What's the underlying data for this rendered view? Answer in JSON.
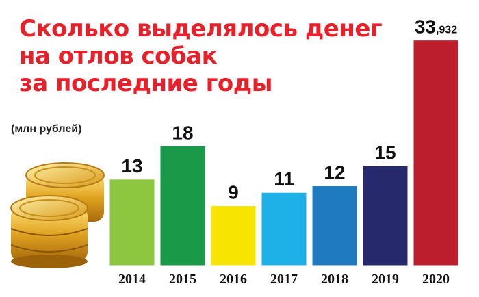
{
  "title_lines": [
    "Сколько выделялось денег",
    "на отлов собак",
    "за последние годы"
  ],
  "chart_data": {
    "type": "bar",
    "title": "Сколько выделялось денег на отлов собак за последние годы",
    "unit_label": "(млн рублей)",
    "categories": [
      "2014",
      "2015",
      "2016",
      "2017",
      "2018",
      "2019",
      "2020"
    ],
    "values": [
      13,
      18,
      9,
      11,
      12,
      15,
      33.932
    ],
    "value_labels": [
      {
        "main": "13",
        "small": ""
      },
      {
        "main": "18",
        "small": ""
      },
      {
        "main": "9",
        "small": ""
      },
      {
        "main": "11",
        "small": ""
      },
      {
        "main": "12",
        "small": ""
      },
      {
        "main": "15",
        "small": ""
      },
      {
        "main": "33",
        "small": ",932"
      }
    ],
    "colors": [
      "#8dc63f",
      "#1a9a48",
      "#f7e400",
      "#1eb1e8",
      "#1f7ac0",
      "#262a6c",
      "#bd1e2d"
    ],
    "ylim": [
      0,
      34
    ],
    "grid": false,
    "legend": "none"
  }
}
